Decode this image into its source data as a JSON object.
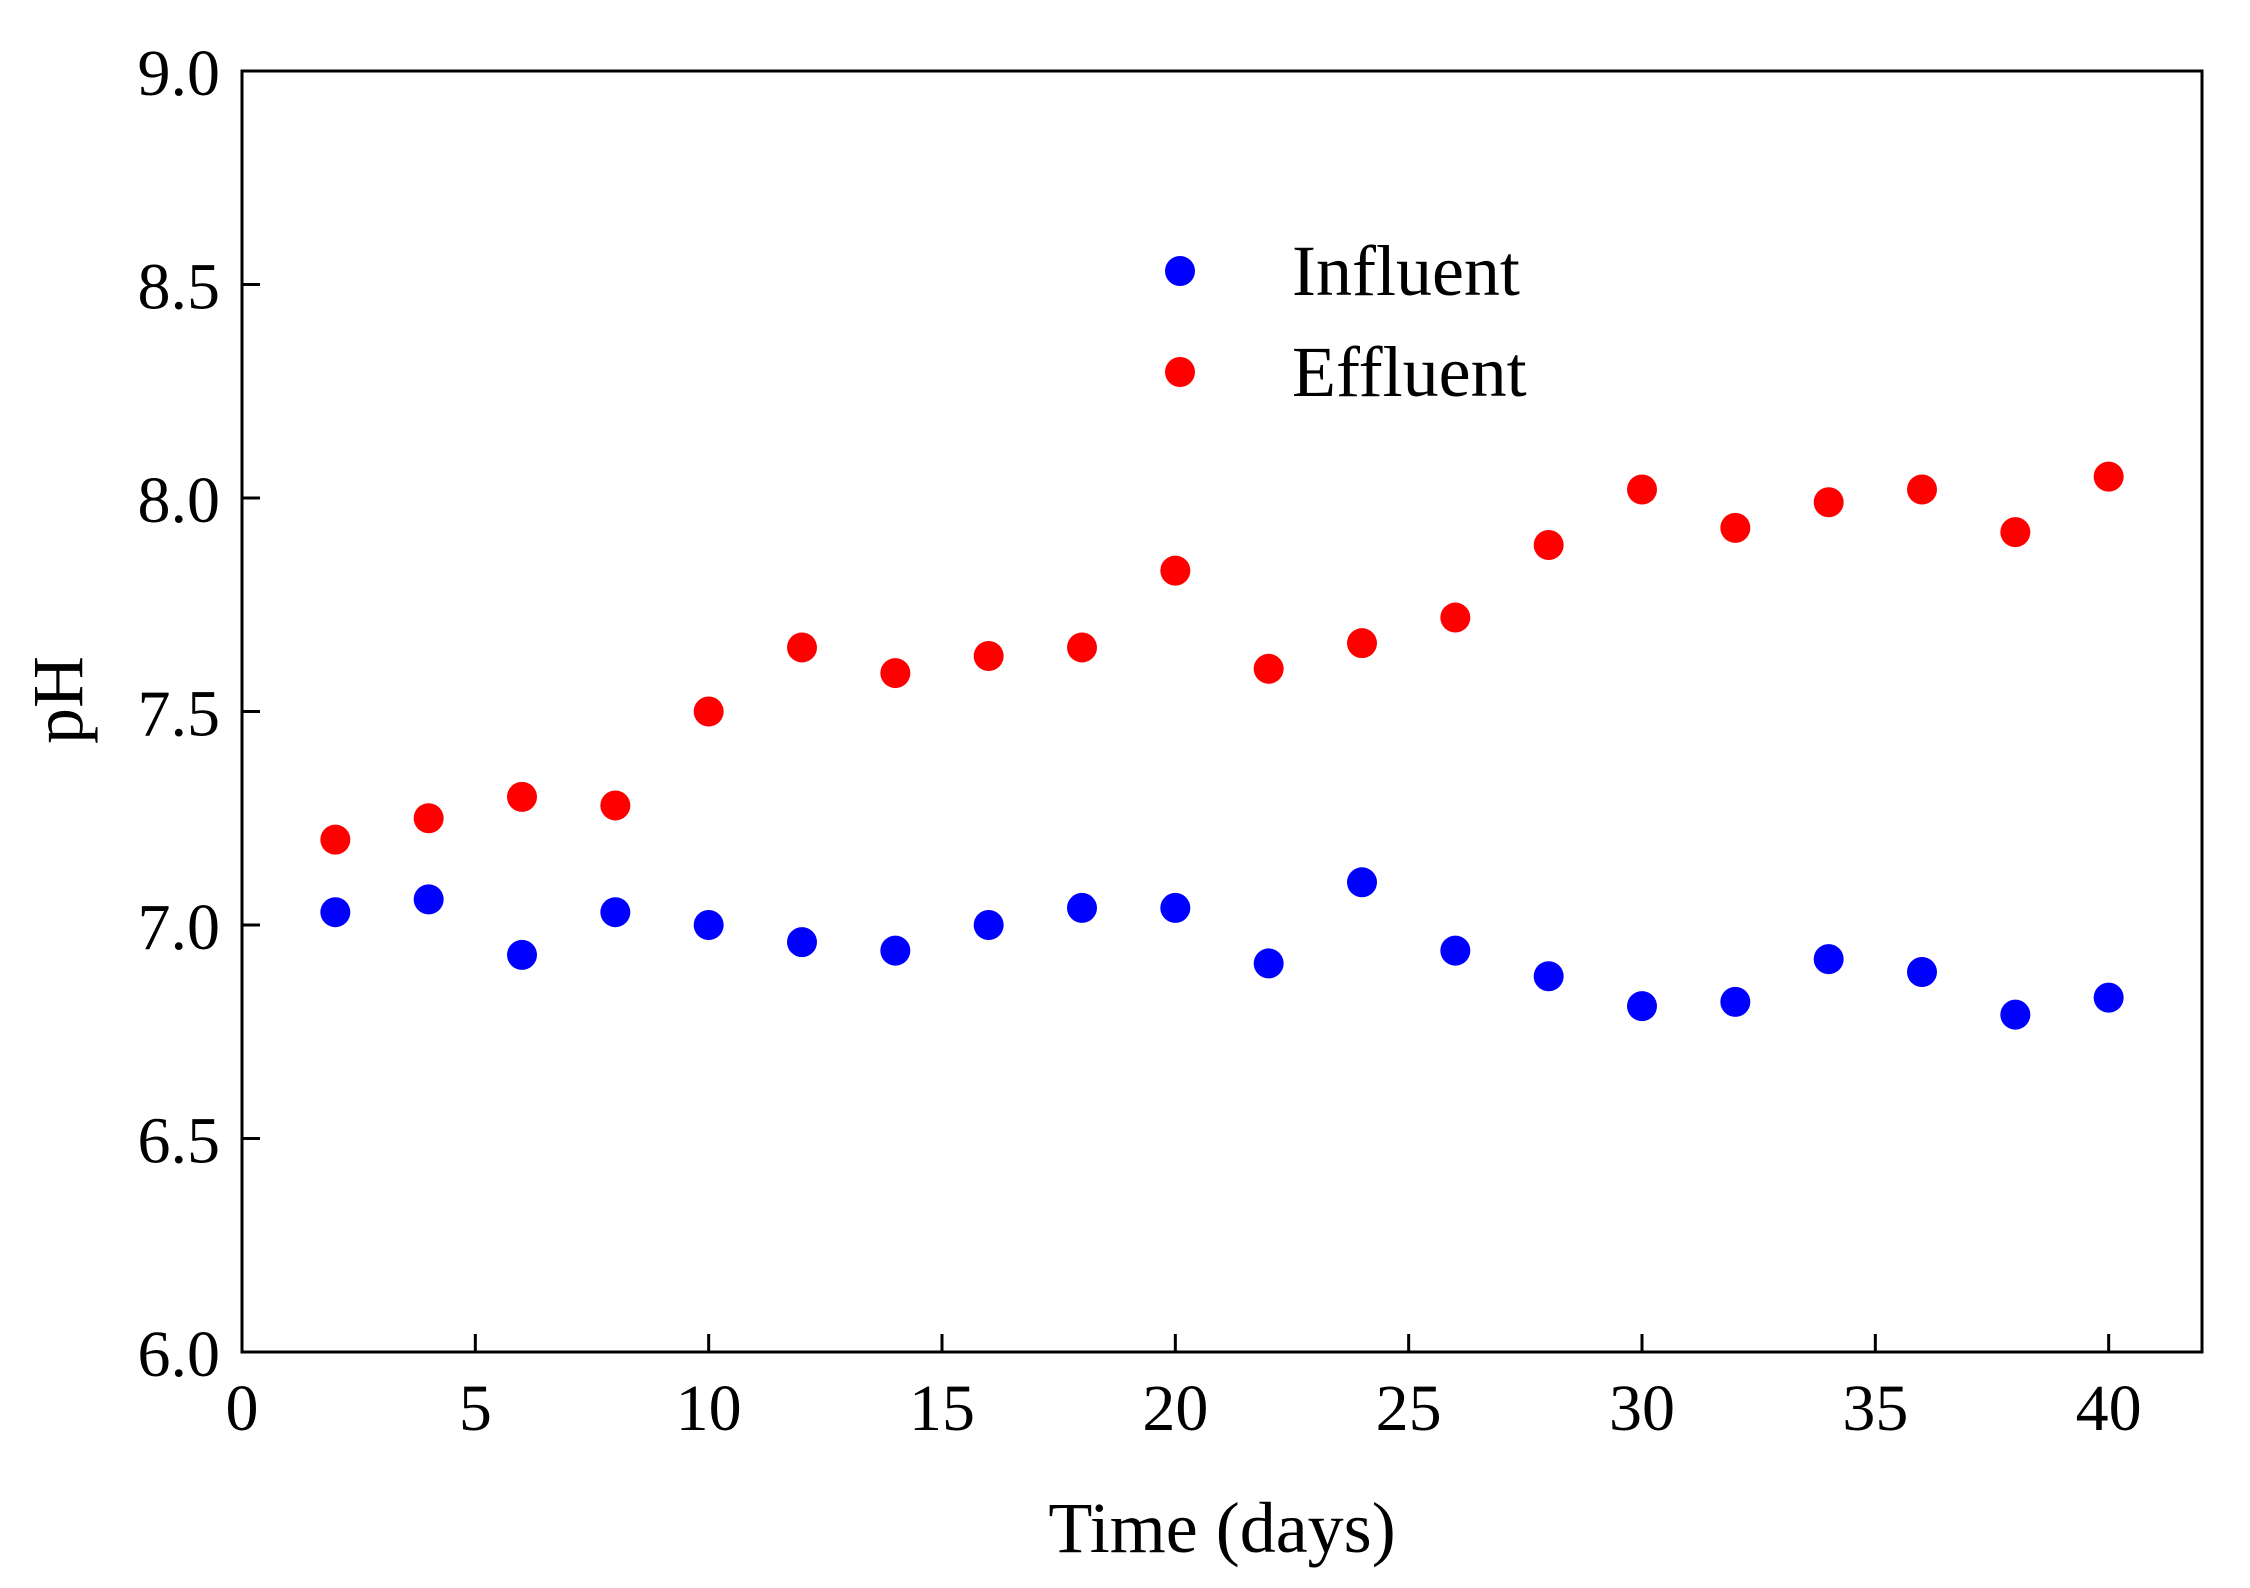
{
  "chart_data": {
    "type": "scatter",
    "xlabel": "Time (days)",
    "ylabel": "pH",
    "xlim": [
      0,
      42
    ],
    "ylim": [
      6.0,
      9.0
    ],
    "xticks": [
      0,
      5,
      10,
      15,
      20,
      25,
      30,
      35,
      40
    ],
    "yticks": [
      6.0,
      6.5,
      7.0,
      7.5,
      8.0,
      8.5,
      9.0
    ],
    "xtick_labels": [
      "0",
      "5",
      "10",
      "15",
      "20",
      "25",
      "30",
      "35",
      "40"
    ],
    "ytick_labels": [
      "6.0",
      "6.5",
      "7.0",
      "7.5",
      "8.0",
      "8.5",
      "9.0"
    ],
    "grid": false,
    "legend_position": "upper-center",
    "series": [
      {
        "name": "Influent",
        "color": "#0000ff",
        "x": [
          2,
          4,
          6,
          8,
          10,
          12,
          14,
          16,
          18,
          20,
          22,
          24,
          26,
          28,
          30,
          32,
          34,
          36,
          38,
          40
        ],
        "y": [
          7.03,
          7.06,
          6.93,
          7.03,
          7.0,
          6.96,
          6.94,
          7.0,
          7.04,
          7.04,
          6.91,
          7.1,
          6.94,
          6.88,
          6.81,
          6.82,
          6.92,
          6.89,
          6.79,
          6.83
        ]
      },
      {
        "name": "Effluent",
        "color": "#ff0000",
        "x": [
          2,
          4,
          6,
          8,
          10,
          12,
          14,
          16,
          18,
          20,
          22,
          24,
          26,
          28,
          30,
          32,
          34,
          36,
          38,
          40
        ],
        "y": [
          7.2,
          7.25,
          7.3,
          7.28,
          7.5,
          7.65,
          7.59,
          7.63,
          7.65,
          7.83,
          7.6,
          7.66,
          7.72,
          7.89,
          8.02,
          7.93,
          7.99,
          8.02,
          7.92,
          8.05
        ]
      }
    ]
  }
}
